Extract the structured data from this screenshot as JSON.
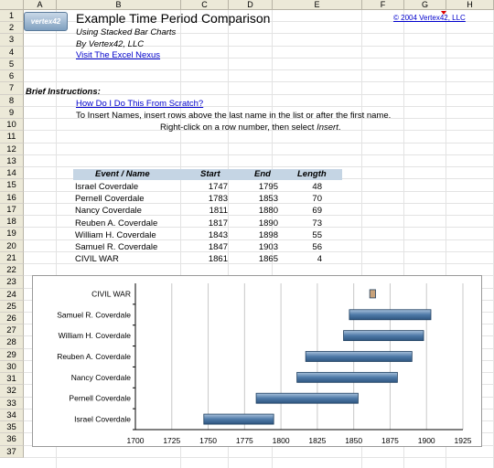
{
  "sheet": {
    "columns": [
      "A",
      "B",
      "C",
      "D",
      "E",
      "F",
      "G",
      "H"
    ],
    "rows": [
      "1",
      "2",
      "3",
      "4",
      "5",
      "6",
      "7",
      "8",
      "9",
      "10",
      "11",
      "12",
      "13",
      "14",
      "15",
      "16",
      "17",
      "18",
      "19",
      "20",
      "21",
      "22",
      "23",
      "24",
      "25",
      "26",
      "27",
      "28",
      "29",
      "30",
      "31",
      "32",
      "33",
      "34",
      "35",
      "36",
      "37"
    ]
  },
  "header": {
    "logo_text": "vertex42",
    "title": "Example Time Period Comparison",
    "subtitle": "Using Stacked Bar Charts",
    "byline": "By Vertex42, LLC",
    "visit_link": "Visit The Excel Nexus",
    "copyright": "© 2004 Vertex42, LLC"
  },
  "instructions": {
    "heading": "Brief Instructions:",
    "howto_link": "How Do I Do This From Scratch?",
    "line1": "To Insert Names, insert rows above the last name in the list or after the first name.",
    "line2_a": "Right-click on a row number, then select ",
    "line2_b": "Insert",
    "line2_c": "."
  },
  "table": {
    "headers": [
      "Event / Name",
      "Start",
      "End",
      "Length"
    ],
    "rows": [
      {
        "name": "Israel Coverdale",
        "start": "1747",
        "end": "1795",
        "length": "48"
      },
      {
        "name": "Pernell Coverdale",
        "start": "1783",
        "end": "1853",
        "length": "70"
      },
      {
        "name": "Nancy Coverdale",
        "start": "1811",
        "end": "1880",
        "length": "69"
      },
      {
        "name": "Reuben A. Coverdale",
        "start": "1817",
        "end": "1890",
        "length": "73"
      },
      {
        "name": "William H. Coverdale",
        "start": "1843",
        "end": "1898",
        "length": "55"
      },
      {
        "name": "Samuel R. Coverdale",
        "start": "1847",
        "end": "1903",
        "length": "56"
      },
      {
        "name": "CIVIL WAR",
        "start": "1861",
        "end": "1865",
        "length": "4"
      }
    ]
  },
  "chart_data": {
    "type": "bar",
    "orientation": "horizontal-stacked",
    "categories": [
      "Israel Coverdale",
      "Pernell Coverdale",
      "Nancy Coverdale",
      "Reuben A. Coverdale",
      "William H. Coverdale",
      "Samuel R. Coverdale",
      "CIVIL WAR"
    ],
    "start": [
      1747,
      1783,
      1811,
      1817,
      1843,
      1847,
      1861
    ],
    "length": [
      48,
      70,
      69,
      73,
      55,
      56,
      4
    ],
    "xlim": [
      1700,
      1925
    ],
    "xticks": [
      "1700",
      "1725",
      "1750",
      "1775",
      "1800",
      "1825",
      "1850",
      "1875",
      "1900",
      "1925"
    ],
    "grid": true,
    "colors": {
      "bar": "#4f7aa8",
      "bar_highlight": "#a9c2dc",
      "war": "#c8a27a",
      "grid": "#c8c8c8",
      "table_header": "#c5d5e4"
    }
  }
}
